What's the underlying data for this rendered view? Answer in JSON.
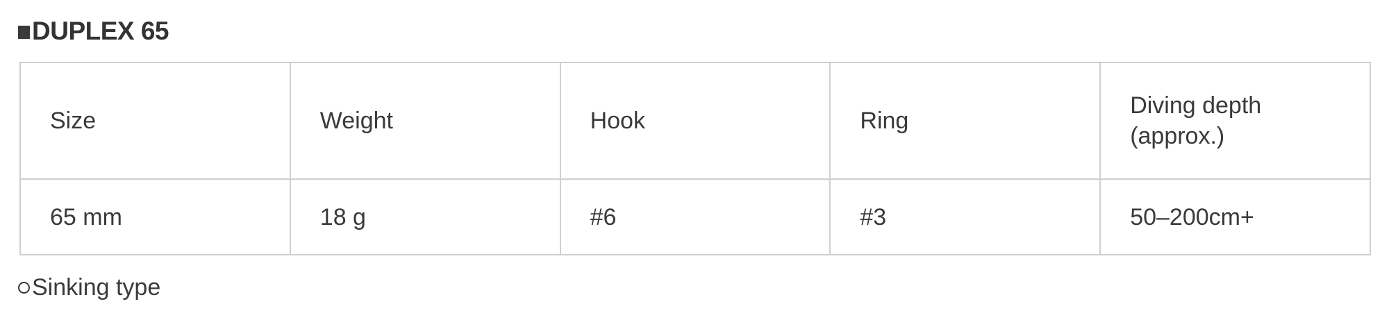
{
  "title": "DUPLEX 65",
  "title_bullet_icon": "black-square",
  "table": {
    "headers": [
      "Size",
      "Weight",
      "Hook",
      "Ring",
      "Diving depth (approx.)"
    ],
    "rows": [
      [
        "65 mm",
        "18 g",
        "#6",
        "#3",
        "50–200cm+"
      ]
    ]
  },
  "note": {
    "bullet_icon": "white-circle",
    "text": "Sinking type"
  }
}
